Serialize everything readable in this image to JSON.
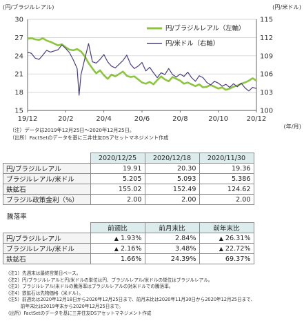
{
  "chart_data": {
    "type": "line",
    "left_axis_unit": "(円/ブラジルレアル)",
    "right_axis_unit": "(円/米ドル)",
    "x_unit": "(年/月)",
    "x_ticks": [
      "19/12",
      "20/2",
      "20/4",
      "20/6",
      "20/8",
      "20/10",
      "20/12"
    ],
    "y_left": {
      "min": 15,
      "max": 30,
      "ticks": [
        15,
        18,
        21,
        24,
        27,
        30
      ]
    },
    "y_right": {
      "min": 100,
      "max": 115,
      "ticks": [
        100,
        103,
        106,
        109,
        112,
        115
      ]
    },
    "legend_placement": "top-right",
    "series": [
      {
        "name": "円/ブラジルレアル（左軸）",
        "axis": "left",
        "color": "#8cc63f",
        "points": [
          [
            0,
            26.8
          ],
          [
            2,
            26.9
          ],
          [
            4,
            26.7
          ],
          [
            6,
            26.6
          ],
          [
            8,
            26.9
          ],
          [
            10,
            26.5
          ],
          [
            12,
            26.3
          ],
          [
            14,
            26.0
          ],
          [
            16,
            25.7
          ],
          [
            18,
            25.9
          ],
          [
            20,
            25.4
          ],
          [
            22,
            25.0
          ],
          [
            24,
            24.9
          ],
          [
            26,
            25.1
          ],
          [
            28,
            24.7
          ],
          [
            30,
            23.9
          ],
          [
            32,
            22.8
          ],
          [
            34,
            21.9
          ],
          [
            36,
            21.1
          ],
          [
            38,
            21.6
          ],
          [
            40,
            20.8
          ],
          [
            42,
            20.2
          ],
          [
            44,
            20.9
          ],
          [
            46,
            20.6
          ],
          [
            48,
            21.0
          ],
          [
            50,
            21.4
          ],
          [
            52,
            20.7
          ],
          [
            54,
            20.5
          ],
          [
            56,
            20.6
          ],
          [
            58,
            20.1
          ],
          [
            60,
            19.6
          ],
          [
            62,
            19.4
          ],
          [
            64,
            19.7
          ],
          [
            66,
            19.3
          ],
          [
            68,
            20.0
          ],
          [
            70,
            20.6
          ],
          [
            72,
            20.1
          ],
          [
            74,
            19.8
          ],
          [
            76,
            20.5
          ],
          [
            78,
            20.2
          ],
          [
            80,
            19.9
          ],
          [
            82,
            19.4
          ],
          [
            84,
            19.6
          ],
          [
            86,
            19.3
          ],
          [
            88,
            19.0
          ],
          [
            90,
            19.3
          ],
          [
            92,
            18.8
          ],
          [
            94,
            18.9
          ],
          [
            96,
            19.2
          ],
          [
            98,
            18.9
          ],
          [
            100,
            18.6
          ],
          [
            102,
            18.8
          ],
          [
            104,
            18.4
          ],
          [
            106,
            18.6
          ],
          [
            108,
            18.9
          ],
          [
            110,
            19.1
          ],
          [
            112,
            19.4
          ],
          [
            114,
            19.6
          ],
          [
            116,
            19.9
          ],
          [
            118,
            20.3
          ],
          [
            120,
            19.9
          ]
        ]
      },
      {
        "name": "円/米ドル（右軸）",
        "axis": "right",
        "color": "#4b3c82",
        "points": [
          [
            0,
            109.6
          ],
          [
            2,
            109.4
          ],
          [
            4,
            108.6
          ],
          [
            6,
            108.4
          ],
          [
            8,
            109.1
          ],
          [
            10,
            109.9
          ],
          [
            12,
            109.6
          ],
          [
            14,
            109.8
          ],
          [
            16,
            110.0
          ],
          [
            18,
            110.8
          ],
          [
            20,
            110.2
          ],
          [
            22,
            109.5
          ],
          [
            24,
            108.3
          ],
          [
            26,
            106.9
          ],
          [
            27,
            102.5
          ],
          [
            28,
            105.9
          ],
          [
            30,
            108.5
          ],
          [
            32,
            111.0
          ],
          [
            34,
            108.0
          ],
          [
            36,
            107.8
          ],
          [
            38,
            108.4
          ],
          [
            40,
            109.2
          ],
          [
            42,
            108.0
          ],
          [
            44,
            107.3
          ],
          [
            46,
            107.0
          ],
          [
            48,
            107.6
          ],
          [
            50,
            108.2
          ],
          [
            52,
            109.1
          ],
          [
            54,
            107.6
          ],
          [
            56,
            106.9
          ],
          [
            58,
            107.3
          ],
          [
            60,
            107.9
          ],
          [
            62,
            106.5
          ],
          [
            64,
            107.1
          ],
          [
            66,
            106.2
          ],
          [
            68,
            105.4
          ],
          [
            70,
            106.2
          ],
          [
            72,
            105.9
          ],
          [
            74,
            106.9
          ],
          [
            76,
            105.9
          ],
          [
            78,
            105.5
          ],
          [
            80,
            106.0
          ],
          [
            82,
            105.6
          ],
          [
            84,
            106.3
          ],
          [
            86,
            105.4
          ],
          [
            88,
            104.8
          ],
          [
            90,
            105.7
          ],
          [
            92,
            105.4
          ],
          [
            94,
            104.6
          ],
          [
            96,
            104.2
          ],
          [
            98,
            104.8
          ],
          [
            100,
            104.5
          ],
          [
            102,
            104.0
          ],
          [
            104,
            104.3
          ],
          [
            106,
            103.8
          ],
          [
            108,
            104.4
          ],
          [
            110,
            103.9
          ],
          [
            112,
            104.5
          ],
          [
            114,
            103.7
          ],
          [
            116,
            103.2
          ],
          [
            118,
            103.8
          ],
          [
            120,
            103.6
          ]
        ]
      }
    ]
  },
  "notes": {
    "chart_note1": "（注）データは2019年12月25日～2020年12月25日。",
    "chart_note2": "（出所）FactSetのデータを基に三井住友DSアセットマネジメント作成"
  },
  "table1": {
    "headers": [
      "2020/12/25",
      "2020/12/18",
      "2020/11/30"
    ],
    "rows": [
      {
        "label": "円/ブラジルレアル",
        "values": [
          "19.91",
          "20.30",
          "19.36"
        ]
      },
      {
        "label": "ブラジルレアル/米ドル",
        "values": [
          "5.205",
          "5.093",
          "5.386"
        ]
      },
      {
        "label": "鉄鉱石",
        "values": [
          "155.02",
          "152.49",
          "124.62"
        ]
      },
      {
        "label": "ブラジル政策金利（%）",
        "values": [
          "2.00",
          "2.00",
          "2.00"
        ]
      }
    ]
  },
  "table2": {
    "title": "騰落率",
    "headers": [
      "前週比",
      "前月末比",
      "前年末比"
    ],
    "rows": [
      {
        "label": "円/ブラジルレアル",
        "values": [
          {
            "tri": "▲",
            "v": "1.93%"
          },
          {
            "tri": "",
            "v": "2.84%"
          },
          {
            "tri": "▲",
            "v": "26.31%"
          }
        ]
      },
      {
        "label": "ブラジルレアル/米ドル",
        "values": [
          {
            "tri": "▲",
            "v": "2.16%"
          },
          {
            "tri": "",
            "v": "3.48%"
          },
          {
            "tri": "▲",
            "v": "22.72%"
          }
        ]
      },
      {
        "label": "鉄鉱石",
        "values": [
          {
            "tri": "",
            "v": "1.66%"
          },
          {
            "tri": "",
            "v": "24.39%"
          },
          {
            "tri": "",
            "v": "69.37%"
          }
        ]
      }
    ]
  },
  "footnotes": [
    "（注1）先週末は最終営業日ベース。",
    "（注2）円/ブラジルレアルと円/米ドルの単位は円、ブラジルレアル/米ドルの単位はブラジルレアル。",
    "（注3）ブラジルレアル/米ドルの騰落率はブラジルレアルの対米ドルでの騰落率。",
    "（注4）鉄鉱石は先物価格（米ドル）。",
    "（注5）前週比は2020年12月18日から2020年12月25日まで、前月末比は2020年11月30日から2020年12月25日まで、",
    "　　　 前年末比は2019年末から2020年12月25日まで。",
    "（出所）FactSetのデータを基に三井住友DSアセットマネジメント作成"
  ]
}
